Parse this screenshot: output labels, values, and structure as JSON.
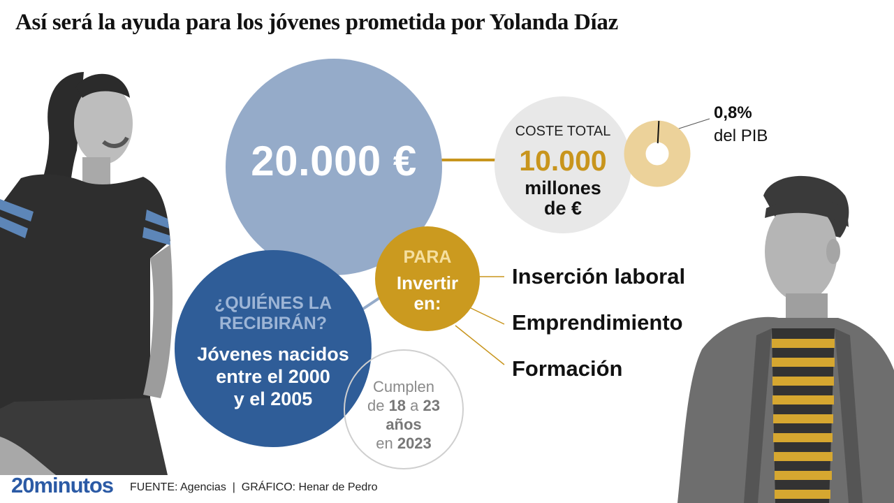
{
  "title": "Así será la ayuda para los jóvenes prometida por Yolanda Díaz",
  "amount": "20.000 €",
  "cost": {
    "label": "COSTE TOTAL",
    "value": "10.000",
    "unit_line1": "millones",
    "unit_line2": "de €"
  },
  "pib": {
    "percent": "0,8%",
    "label": "del PIB",
    "share": 0.008
  },
  "who": {
    "question_line1": "¿QUIÉNES LA",
    "question_line2": "RECIBIRÁN?",
    "answer_line1": "Jóvenes nacidos",
    "answer_line2": "entre el 2000",
    "answer_line3": "y el 2005"
  },
  "purpose": {
    "label": "PARA",
    "line1": "Invertir",
    "line2": "en:",
    "targets": [
      "Inserción laboral",
      "Emprendimiento",
      "Formación"
    ]
  },
  "age": {
    "line1": "Cumplen",
    "pre": "de",
    "from": "18",
    "mid": "a",
    "to": "23",
    "line3": "años",
    "line4_pre": "en",
    "year": "2023"
  },
  "footer": {
    "logo": "20minutos",
    "source": "FUENTE: Agencias  |  GRÁFICO: Henar de Pedro"
  },
  "colors": {
    "big_circle": "#95abc9",
    "who_circle": "#2f5d98",
    "para_circle": "#cb9a1f",
    "cost_accent": "#c8951d",
    "pib_donut": "#ecd29a",
    "logo": "#2b5aa5"
  }
}
